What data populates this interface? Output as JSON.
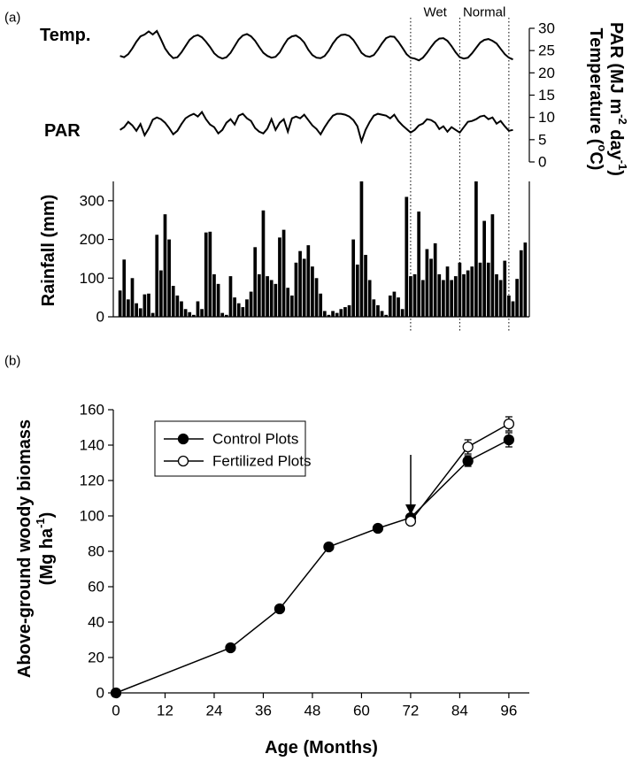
{
  "chart_data": [
    {
      "type": "combo",
      "panel_label": "(a)",
      "xlim": [
        0,
        101
      ],
      "ylabel": "Rainfall (mm)",
      "ylim": [
        0,
        350
      ],
      "yticks": [
        0,
        100,
        200,
        300
      ],
      "y2label": [
        [
          "PAR (MJ m",
          "-2",
          " day",
          "-1",
          ")"
        ],
        [
          "Temperature (",
          "o",
          "C)"
        ]
      ],
      "y2lim": [
        0,
        30
      ],
      "y2ticks": [
        0,
        5,
        10,
        15,
        20,
        25,
        30
      ],
      "vlines": [
        72,
        84,
        96
      ],
      "period_labels": [
        "Wet",
        "Normal"
      ],
      "series": [
        {
          "name": "Temp.",
          "type": "line",
          "axis": "y2",
          "color": "#000000",
          "x": [
            1,
            2,
            3,
            4,
            5,
            6,
            7,
            8,
            9,
            10,
            11,
            12,
            13,
            14,
            15,
            16,
            17,
            18,
            19,
            20,
            21,
            22,
            23,
            24,
            25,
            26,
            27,
            28,
            29,
            30,
            31,
            32,
            33,
            34,
            35,
            36,
            37,
            38,
            39,
            40,
            41,
            42,
            43,
            44,
            45,
            46,
            47,
            48,
            49,
            50,
            51,
            52,
            53,
            54,
            55,
            56,
            57,
            58,
            59,
            60,
            61,
            62,
            63,
            64,
            65,
            66,
            67,
            68,
            69,
            70,
            71,
            72,
            73,
            74,
            75,
            76,
            77,
            78,
            79,
            80,
            81,
            82,
            83,
            84,
            85,
            86,
            87,
            88,
            89,
            90,
            91,
            92,
            93,
            94,
            95,
            96,
            97
          ],
          "values": [
            23.8,
            23.5,
            24.2,
            25.5,
            27,
            28.2,
            28.6,
            29.3,
            28.6,
            29.4,
            27.5,
            25.5,
            24.2,
            23.3,
            23.5,
            24.6,
            26,
            27.4,
            28.2,
            28.5,
            28,
            27,
            25.8,
            24.4,
            23.6,
            23.2,
            23.5,
            24.5,
            26,
            27.5,
            28.4,
            28.7,
            28.2,
            27.2,
            25.8,
            24.5,
            23.8,
            23.4,
            23.6,
            24.6,
            26.2,
            27.6,
            28.2,
            28.4,
            27.8,
            26.8,
            25.2,
            24,
            23.4,
            23.3,
            23.8,
            25,
            26.6,
            27.8,
            28.5,
            28.6,
            28.3,
            27.4,
            26,
            24.5,
            23.8,
            23.6,
            24,
            25.2,
            26.6,
            27.8,
            28.2,
            28.1,
            27,
            25.6,
            24.2,
            23.4,
            23.2,
            22.8,
            23.4,
            24.5,
            25.8,
            27,
            27.7,
            27.8,
            27.2,
            26,
            24.6,
            23.5,
            23.2,
            23.4,
            24.4,
            25.6,
            26.8,
            27.4,
            27.6,
            27.2,
            26.6,
            25.4,
            24.2,
            23.4,
            23
          ]
        },
        {
          "name": "PAR",
          "type": "line",
          "axis": "y2",
          "color": "#000000",
          "x": [
            1,
            2,
            3,
            4,
            5,
            6,
            7,
            8,
            9,
            10,
            11,
            12,
            13,
            14,
            15,
            16,
            17,
            18,
            19,
            20,
            21,
            22,
            23,
            24,
            25,
            26,
            27,
            28,
            29,
            30,
            31,
            32,
            33,
            34,
            35,
            36,
            37,
            38,
            39,
            40,
            41,
            42,
            43,
            44,
            45,
            46,
            47,
            48,
            49,
            50,
            51,
            52,
            53,
            54,
            55,
            56,
            57,
            58,
            59,
            60,
            61,
            62,
            63,
            64,
            65,
            66,
            67,
            68,
            69,
            70,
            71,
            72,
            73,
            74,
            75,
            76,
            77,
            78,
            79,
            80,
            81,
            82,
            83,
            84,
            85,
            86,
            87,
            88,
            89,
            90,
            91,
            92,
            93,
            94,
            95,
            96,
            97
          ],
          "values": [
            7.2,
            7.8,
            9,
            8.2,
            7,
            8.5,
            6,
            7.5,
            9.5,
            10,
            9.6,
            8.8,
            7.6,
            6.2,
            7,
            8.5,
            9.8,
            10.4,
            10.8,
            10.2,
            11.2,
            9.6,
            8.4,
            7.8,
            6.4,
            7.2,
            8.8,
            9.6,
            8.4,
            10.4,
            10.8,
            9.8,
            9.2,
            7.6,
            6.8,
            6.4,
            7.5,
            9.6,
            7.2,
            8.8,
            9.6,
            6.8,
            9.8,
            10.2,
            9.8,
            10.6,
            9.4,
            8.2,
            7.4,
            6.2,
            7.8,
            9.2,
            10.4,
            10.8,
            10.8,
            10.6,
            10.2,
            9.4,
            8,
            4.6,
            7.2,
            9,
            10.4,
            10.8,
            10.6,
            10.4,
            9.8,
            10.6,
            9.2,
            8.2,
            7.4,
            6.6,
            7.2,
            8.2,
            8.6,
            9.6,
            9.4,
            8.8,
            7.4,
            8,
            6.8,
            7.8,
            7.2,
            6.6,
            7.8,
            9,
            9.2,
            9.6,
            10.2,
            10.4,
            9.6,
            10,
            8.6,
            9.2,
            8,
            7,
            7.2
          ]
        },
        {
          "type": "bar",
          "axis": "y",
          "color": "#000000",
          "x": [
            1,
            2,
            3,
            4,
            5,
            6,
            7,
            8,
            9,
            10,
            11,
            12,
            13,
            14,
            15,
            16,
            17,
            18,
            19,
            20,
            21,
            22,
            23,
            24,
            25,
            26,
            27,
            28,
            29,
            30,
            31,
            32,
            33,
            34,
            35,
            36,
            37,
            38,
            39,
            40,
            41,
            42,
            43,
            44,
            45,
            46,
            47,
            48,
            49,
            50,
            51,
            52,
            53,
            54,
            55,
            56,
            57,
            58,
            59,
            60,
            61,
            62,
            63,
            64,
            65,
            66,
            67,
            68,
            69,
            70,
            71,
            72,
            73,
            74,
            75,
            76,
            77,
            78,
            79,
            80,
            81,
            82,
            83,
            84,
            85,
            86,
            87,
            88,
            89,
            90,
            91,
            92,
            93,
            94,
            95,
            96,
            97,
            98,
            99,
            100
          ],
          "values": [
            68,
            148,
            45,
            100,
            35,
            22,
            58,
            60,
            10,
            212,
            120,
            265,
            200,
            80,
            55,
            40,
            20,
            12,
            5,
            40,
            20,
            218,
            220,
            110,
            85,
            10,
            5,
            105,
            50,
            35,
            25,
            45,
            65,
            180,
            110,
            275,
            105,
            95,
            85,
            205,
            225,
            75,
            55,
            140,
            170,
            150,
            185,
            130,
            100,
            60,
            15,
            5,
            15,
            10,
            20,
            25,
            30,
            200,
            135,
            350,
            160,
            95,
            45,
            30,
            15,
            5,
            55,
            65,
            50,
            20,
            310,
            105,
            110,
            272,
            95,
            175,
            150,
            190,
            110,
            95,
            130,
            95,
            105,
            140,
            110,
            120,
            130,
            350,
            140,
            248,
            140,
            265,
            110,
            95,
            145,
            55,
            40,
            98,
            172,
            192
          ]
        }
      ]
    },
    {
      "type": "line",
      "panel_label": "(b)",
      "xlabel": "Age (Months)",
      "ylabel": [
        [
          "Above-ground woody biomass"
        ],
        [
          "(Mg ha",
          "-1",
          ")"
        ]
      ],
      "xlim": [
        0,
        101
      ],
      "xticks": [
        0,
        12,
        24,
        36,
        48,
        60,
        72,
        84,
        96
      ],
      "ylim": [
        0,
        160
      ],
      "yticks": [
        0,
        20,
        40,
        60,
        80,
        100,
        120,
        140,
        160
      ],
      "series": [
        {
          "name": "Control Plots",
          "color": "#000000",
          "marker_fill": "#000000",
          "x": [
            0,
            28,
            40,
            52,
            64,
            72,
            86,
            96
          ],
          "values": [
            0,
            25.5,
            47.5,
            82.5,
            93,
            99,
            131,
            143
          ],
          "errors": [
            null,
            null,
            null,
            null,
            null,
            null,
            3,
            4
          ]
        },
        {
          "name": "Fertilized Plots",
          "color": "#000000",
          "marker_fill": "#ffffff",
          "x": [
            72,
            86,
            96
          ],
          "values": [
            97,
            139,
            152
          ],
          "errors": [
            null,
            4,
            4
          ]
        }
      ]
    }
  ]
}
